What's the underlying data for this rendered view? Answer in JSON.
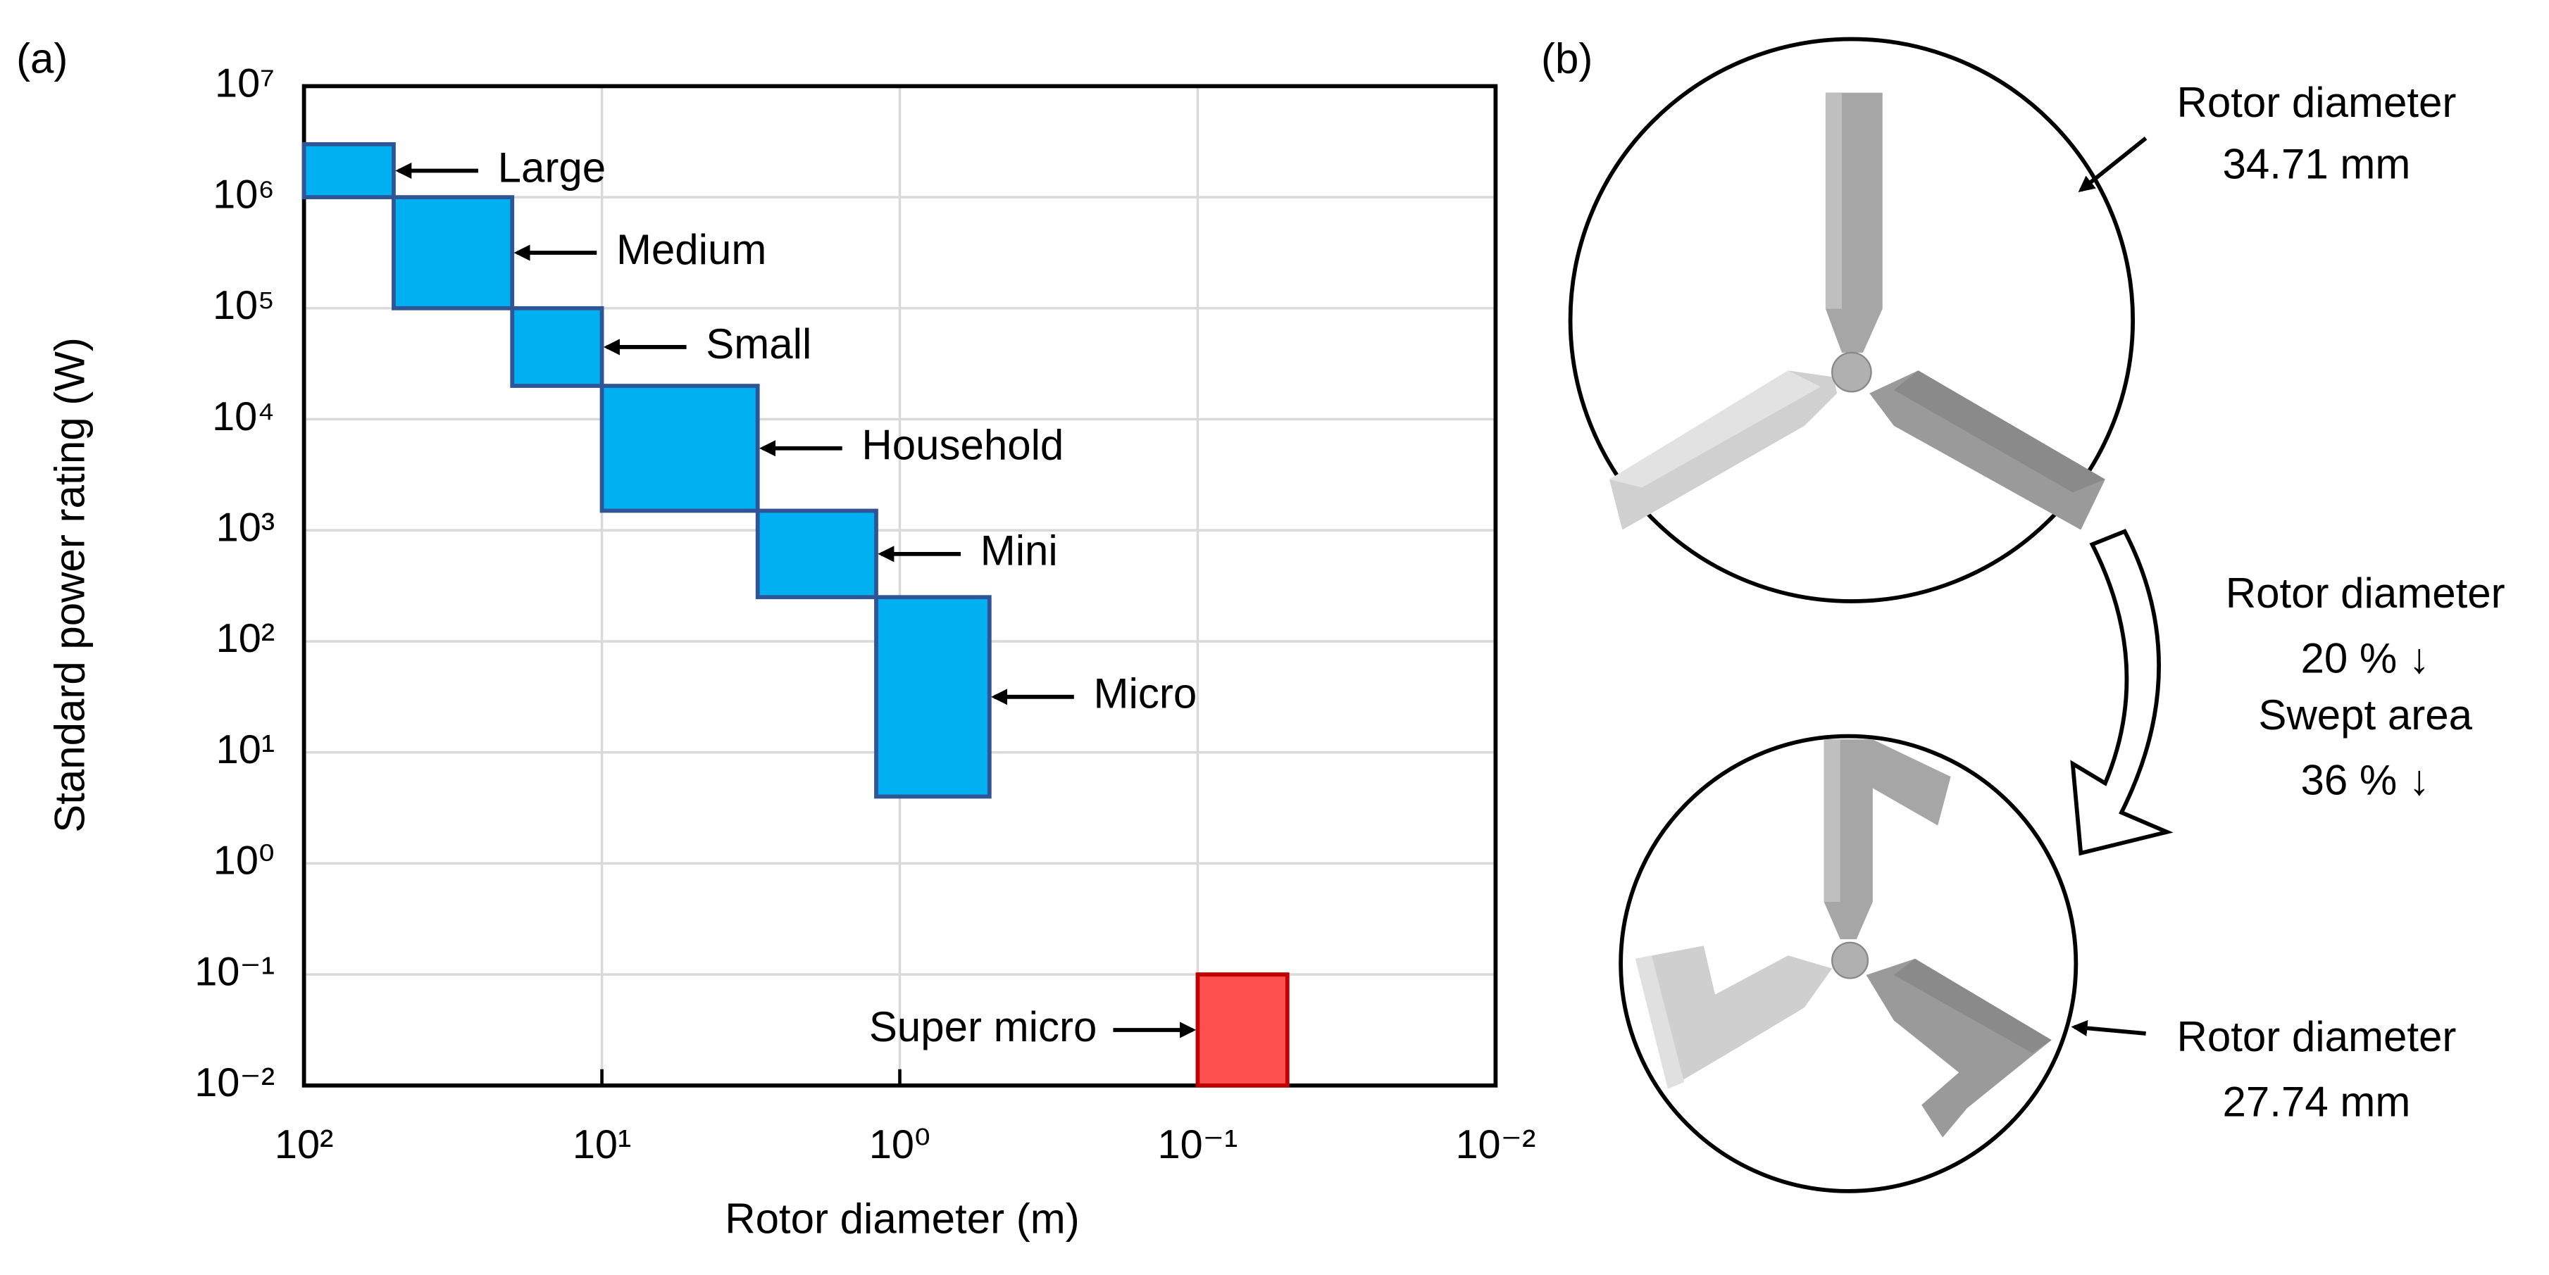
{
  "chart_data": {
    "type": "range_boxes",
    "panel_label": "(a)",
    "xlabel": "Rotor diameter (m)",
    "ylabel": "Standard power rating (W)",
    "xscale": "log",
    "yscale": "log",
    "grid": true,
    "xlim": [
      100,
      0.01
    ],
    "ylim": [
      0.01,
      10000000
    ],
    "xticks": [
      {
        "value": 100,
        "label": "10²"
      },
      {
        "value": 10,
        "label": "10¹"
      },
      {
        "value": 1,
        "label": "10⁰"
      },
      {
        "value": 0.1,
        "label": "10⁻¹"
      },
      {
        "value": 0.01,
        "label": "10⁻²"
      }
    ],
    "yticks": [
      {
        "value": 0.01,
        "label": "10⁻²"
      },
      {
        "value": 0.1,
        "label": "10⁻¹"
      },
      {
        "value": 1,
        "label": "10⁰"
      },
      {
        "value": 10,
        "label": "10¹"
      },
      {
        "value": 100,
        "label": "10²"
      },
      {
        "value": 1000,
        "label": "10³"
      },
      {
        "value": 10000,
        "label": "10⁴"
      },
      {
        "value": 100000,
        "label": "10⁵"
      },
      {
        "value": 1000000,
        "label": "10⁶"
      },
      {
        "value": 10000000,
        "label": "10⁷"
      }
    ],
    "boxes": [
      {
        "name": "Large",
        "x": [
          100,
          50
        ],
        "y": [
          1000000,
          3000000
        ],
        "color": "#00b0f0",
        "edge": "#2f5597",
        "label_side": "right"
      },
      {
        "name": "Medium",
        "x": [
          50,
          20
        ],
        "y": [
          100000,
          1000000
        ],
        "color": "#00b0f0",
        "edge": "#2f5597",
        "label_side": "right"
      },
      {
        "name": "Small",
        "x": [
          20,
          10
        ],
        "y": [
          20000,
          100000
        ],
        "color": "#00b0f0",
        "edge": "#2f5597",
        "label_side": "right"
      },
      {
        "name": "Household",
        "x": [
          10,
          3
        ],
        "y": [
          1500,
          20000
        ],
        "color": "#00b0f0",
        "edge": "#2f5597",
        "label_side": "right"
      },
      {
        "name": "Mini",
        "x": [
          3,
          1.2
        ],
        "y": [
          250,
          1500
        ],
        "color": "#00b0f0",
        "edge": "#2f5597",
        "label_side": "right"
      },
      {
        "name": "Micro",
        "x": [
          1.2,
          0.5
        ],
        "y": [
          4,
          250
        ],
        "color": "#00b0f0",
        "edge": "#2f5597",
        "label_side": "right"
      },
      {
        "name": "Super micro",
        "x": [
          0.1,
          0.05
        ],
        "y": [
          0.01,
          0.1
        ],
        "color": "#ff5050",
        "edge": "#c00000",
        "label_side": "left"
      }
    ]
  },
  "panel_b": {
    "panel_label": "(b)",
    "top_label": [
      "Rotor diameter",
      "34.71 mm"
    ],
    "middle_label": [
      "Rotor diameter",
      "20 % ↓",
      "Swept area",
      "36 % ↓"
    ],
    "bottom_label": [
      "Rotor diameter",
      "27.74 mm"
    ]
  }
}
